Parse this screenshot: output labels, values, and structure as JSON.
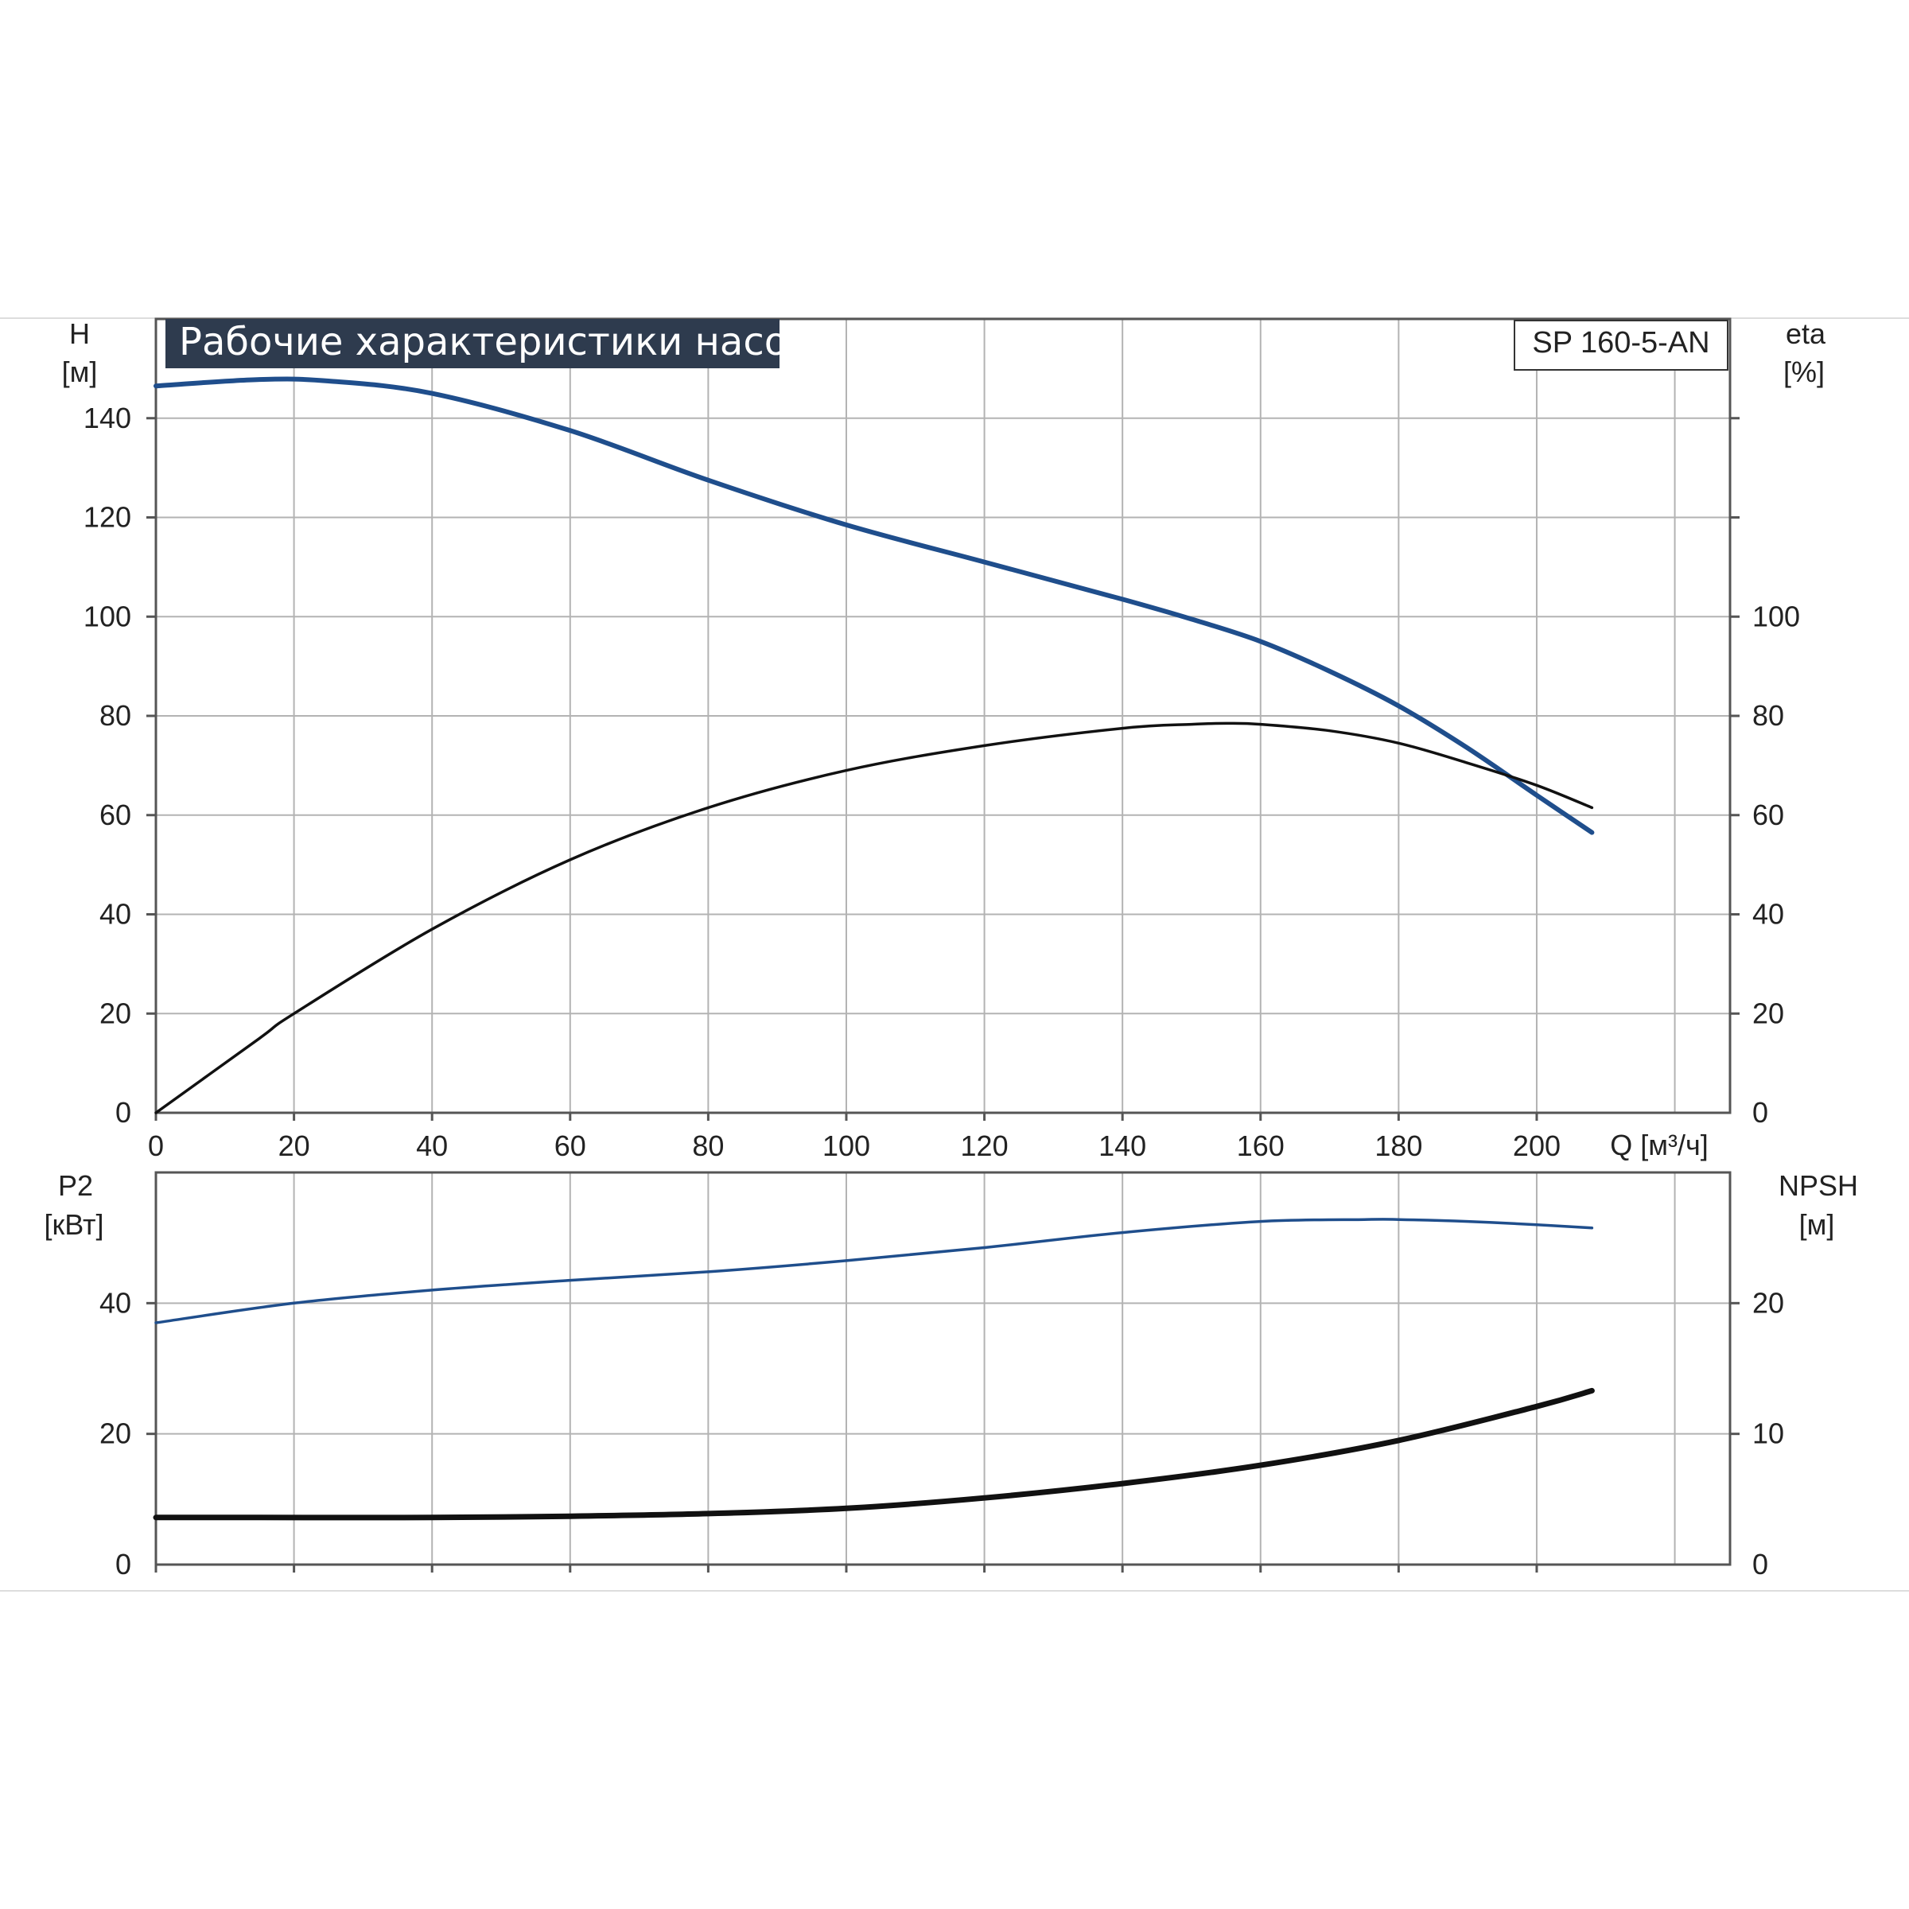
{
  "chart_data": [
    {
      "type": "line",
      "title": "Рабочие характеристики насоса",
      "model_label": "SP 160-5-AN",
      "left_axis": {
        "label": "H",
        "unit": "[м]",
        "range": [
          0,
          160
        ],
        "ticks": [
          0,
          20,
          40,
          60,
          80,
          100,
          120,
          140
        ]
      },
      "right_axis": {
        "label": "eta",
        "unit": "[%]",
        "range": [
          0,
          160
        ],
        "ticks": [
          0,
          20,
          40,
          60,
          80,
          100
        ]
      },
      "x_axis": {
        "label": "Q [м³/ч]",
        "range": [
          0,
          228
        ],
        "ticks": [
          0,
          20,
          40,
          60,
          80,
          100,
          120,
          140,
          160,
          180,
          200
        ]
      },
      "grid": true,
      "series": [
        {
          "axis": "left",
          "color": "#1f4e8c",
          "x": [
            0,
            15,
            25,
            40,
            60,
            80,
            100,
            120,
            140,
            150,
            160,
            170,
            180,
            190,
            200,
            208
          ],
          "y": [
            146.5,
            147.8,
            147.5,
            145,
            137.5,
            127.5,
            118.5,
            111,
            103.5,
            99.5,
            95,
            89,
            82,
            73.5,
            64,
            56.5
          ]
        },
        {
          "axis": "right",
          "color": "#111111",
          "x": [
            0,
            15,
            20,
            40,
            60,
            80,
            100,
            120,
            140,
            150,
            155,
            160,
            170,
            180,
            190,
            200,
            208
          ],
          "y": [
            0,
            15,
            20,
            37,
            51,
            61.5,
            69,
            74,
            77.5,
            78.3,
            78.5,
            78.3,
            77,
            74.5,
            70.5,
            66,
            61.5
          ]
        }
      ]
    },
    {
      "type": "line",
      "left_axis": {
        "label": "P2",
        "unit": "[кВт]",
        "range": [
          0,
          60
        ],
        "ticks": [
          0,
          20,
          40
        ]
      },
      "right_axis": {
        "label": "NPSH",
        "unit": "[м]",
        "range": [
          0,
          30
        ],
        "ticks": [
          0,
          10,
          20
        ]
      },
      "x_axis": {
        "range": [
          0,
          228
        ],
        "ticks": [
          0,
          20,
          40,
          60,
          80,
          100,
          120,
          140,
          160,
          180,
          200
        ]
      },
      "grid": true,
      "series": [
        {
          "axis": "left",
          "color": "#1f4e8c",
          "x": [
            0,
            20,
            40,
            60,
            80,
            100,
            120,
            140,
            160,
            175,
            180,
            190,
            200,
            208
          ],
          "y": [
            37,
            40,
            42,
            43.5,
            44.8,
            46.5,
            48.5,
            50.8,
            52.5,
            52.8,
            52.8,
            52.5,
            52,
            51.5
          ]
        },
        {
          "axis": "right",
          "color": "#111111",
          "x": [
            0,
            15,
            40,
            60,
            80,
            100,
            120,
            140,
            160,
            180,
            200,
            208
          ],
          "y": [
            3.6,
            3.6,
            3.6,
            3.7,
            3.9,
            4.3,
            5.1,
            6.2,
            7.6,
            9.5,
            12.1,
            13.3
          ]
        }
      ]
    }
  ]
}
